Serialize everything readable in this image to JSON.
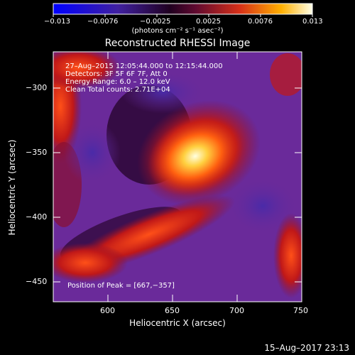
{
  "colorbar": {
    "ticks": [
      "−0.013",
      "−0.0076",
      "−0.0025",
      "0.0025",
      "0.0076",
      "0.013"
    ],
    "units": "(photons cm⁻² s⁻¹ asec⁻²)",
    "colors": [
      "#0000ff",
      "#3b1f9a",
      "#1a0016",
      "#7a0c30",
      "#e0401a",
      "#ffb000",
      "#ffffe0"
    ]
  },
  "plot": {
    "title": "Reconstructed RHESSI Image",
    "xlabel": "Heliocentric X (arcsec)",
    "ylabel": "Heliocentric Y (arcsec)",
    "xticks": [
      "600",
      "650",
      "700",
      "750"
    ],
    "yticks": [
      "−300",
      "−350",
      "−400",
      "−450"
    ]
  },
  "overlay": {
    "line1": "27–Aug–2015 12:05:44.000 to 12:15:44.000",
    "line2": "Detectors: 3F 5F 6F 7F, Att 0",
    "line3": "Energy Range: 6.0 – 12.0 keV",
    "line4": "Clean     Total counts: 2.71E+04",
    "peak": "Position of Peak = [667,−357]"
  },
  "timestamp": "15–Aug–2017 23:13"
}
